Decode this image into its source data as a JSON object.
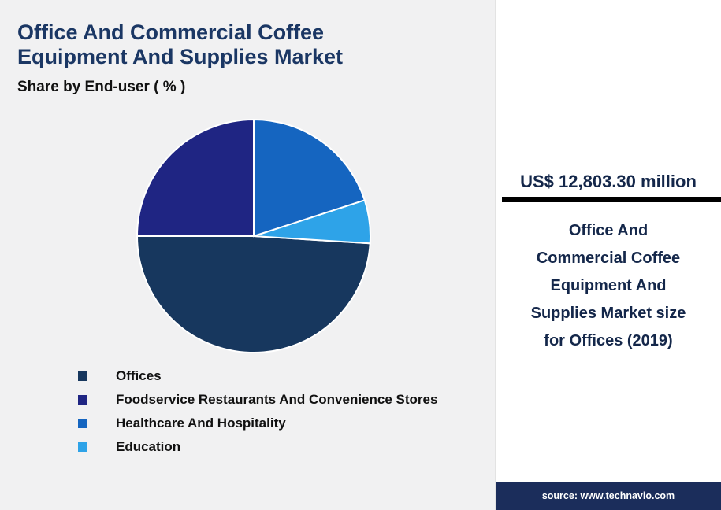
{
  "header": {
    "title_lines": [
      "Office And Commercial Coffee",
      "Equipment And Supplies Market"
    ],
    "subtitle": "Share by End-user ( % )"
  },
  "chart_data": {
    "type": "pie",
    "title": "Office And Commercial Coffee Equipment And Supplies Market - Share by End-user (%)",
    "categories": [
      "Offices",
      "Foodservice Restaurants And Convenience Stores",
      "Healthcare And Hospitality",
      "Education"
    ],
    "values": [
      49,
      25,
      20,
      6
    ],
    "unit": "%",
    "colors": [
      "#17375e",
      "#1f2583",
      "#1565c0",
      "#2ea3e8"
    ],
    "legend_position": "bottom-left",
    "start_angle": 90,
    "direction": "counterclockwise",
    "draw_order": [
      1,
      0,
      3,
      2
    ],
    "data_labels_shown": false
  },
  "stat_panel": {
    "value": "US$ 12,803.30 million",
    "description": "Office And Commercial Coffee Equipment And Supplies Market size for Offices (2019)",
    "source": "source: www.technavio.com"
  },
  "colors": {
    "title_text": "#1b3764",
    "stat_text": "#14274a",
    "divider_rule": "#000000",
    "source_bar_bg": "#1b2d5b",
    "source_text": "#ffffff",
    "chart_area_bg": "#f1f1f2",
    "stat_panel_bg": "#ffffff"
  }
}
